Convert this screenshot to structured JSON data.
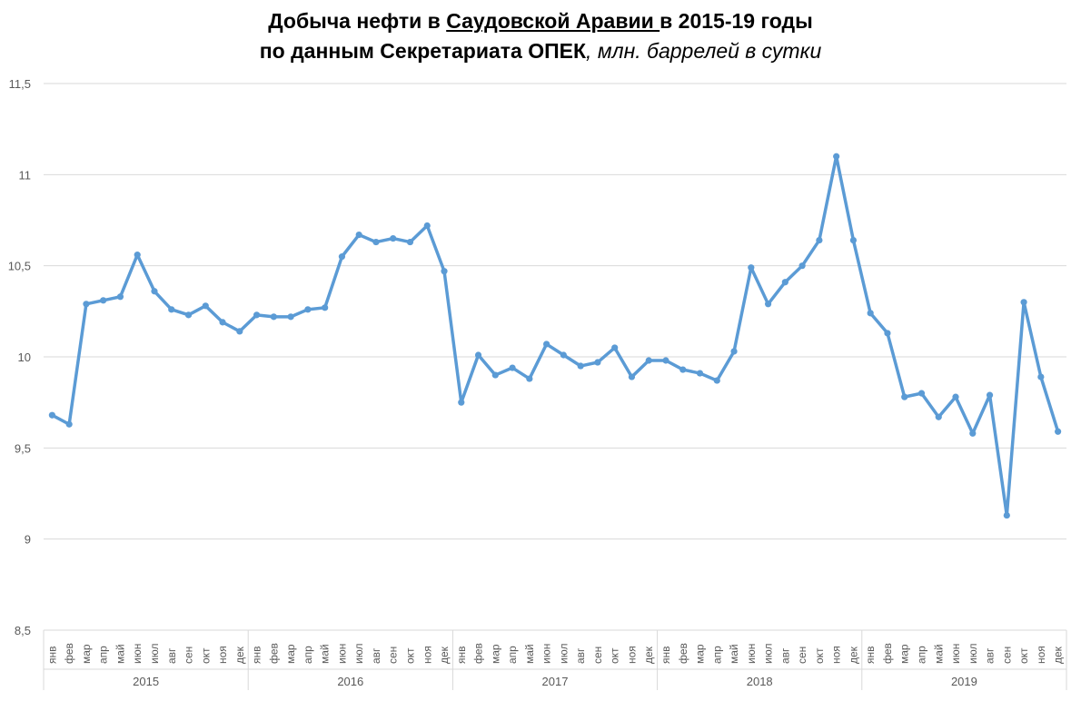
{
  "chart_data": {
    "type": "line",
    "title": {
      "part1": "Добыча нефти в ",
      "part2": "Саудовской Аравии ",
      "part3": "в 2015-19 годы",
      "line2_bold": "по данным Секретариата ОПЕК",
      "line2_italic": ", млн. баррелей в сутки"
    },
    "ylim": [
      8.5,
      11.5
    ],
    "yticks": [
      {
        "v": 8.5,
        "label": "8,5"
      },
      {
        "v": 9,
        "label": "9"
      },
      {
        "v": 9.5,
        "label": "9,5"
      },
      {
        "v": 10,
        "label": "10"
      },
      {
        "v": 10.5,
        "label": "10,5"
      },
      {
        "v": 11,
        "label": "11"
      },
      {
        "v": 11.5,
        "label": "11,5"
      }
    ],
    "grid": true,
    "line_color": "#5b9bd5",
    "months": [
      "янв",
      "фев",
      "мар",
      "апр",
      "май",
      "июн",
      "июл",
      "авг",
      "сен",
      "окт",
      "ноя",
      "дек"
    ],
    "years": [
      "2015",
      "2016",
      "2017",
      "2018",
      "2019"
    ],
    "series": [
      {
        "name": "Добыча нефти",
        "values": [
          9.68,
          9.63,
          10.29,
          10.31,
          10.33,
          10.56,
          10.36,
          10.26,
          10.23,
          10.28,
          10.19,
          10.14,
          10.23,
          10.22,
          10.22,
          10.26,
          10.27,
          10.55,
          10.67,
          10.63,
          10.65,
          10.63,
          10.72,
          10.47,
          9.75,
          10.01,
          9.9,
          9.94,
          9.88,
          10.07,
          10.01,
          9.95,
          9.97,
          10.05,
          9.89,
          9.98,
          9.98,
          9.93,
          9.91,
          9.87,
          10.03,
          10.49,
          10.29,
          10.41,
          10.5,
          10.64,
          11.1,
          10.64,
          10.24,
          10.13,
          9.78,
          9.8,
          9.67,
          9.78,
          9.58,
          9.79,
          9.13,
          10.3,
          9.89,
          9.59
        ]
      }
    ]
  }
}
